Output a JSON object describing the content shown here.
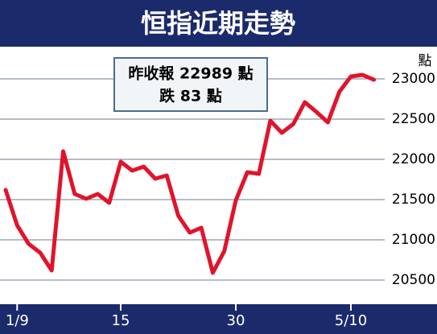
{
  "chart_data": {
    "type": "line",
    "title": "恒指近期走勢",
    "annotation": [
      "昨收報 22989 點",
      "跌 83 點"
    ],
    "y_label": "點",
    "categories": [
      null,
      "1/9",
      null,
      null,
      null,
      null,
      null,
      null,
      null,
      null,
      "15",
      null,
      null,
      null,
      null,
      null,
      null,
      null,
      null,
      null,
      "30",
      null,
      null,
      null,
      null,
      null,
      null,
      null,
      null,
      null,
      "5/10",
      null,
      null
    ],
    "series": [
      {
        "name": "恒指",
        "color": "#e0142c",
        "values": [
          21620,
          21180,
          20950,
          20840,
          20620,
          22100,
          21570,
          21510,
          21570,
          21460,
          21970,
          21860,
          21910,
          21760,
          21800,
          21300,
          21090,
          21150,
          20590,
          20860,
          21490,
          21840,
          21820,
          22480,
          22330,
          22440,
          22710,
          22590,
          22460,
          22840,
          23030,
          23050,
          22989
        ]
      }
    ],
    "ylim": [
      20200,
      23400
    ],
    "yticks": [
      20500,
      21000,
      21500,
      22000,
      22500,
      23000
    ],
    "grid": true
  }
}
